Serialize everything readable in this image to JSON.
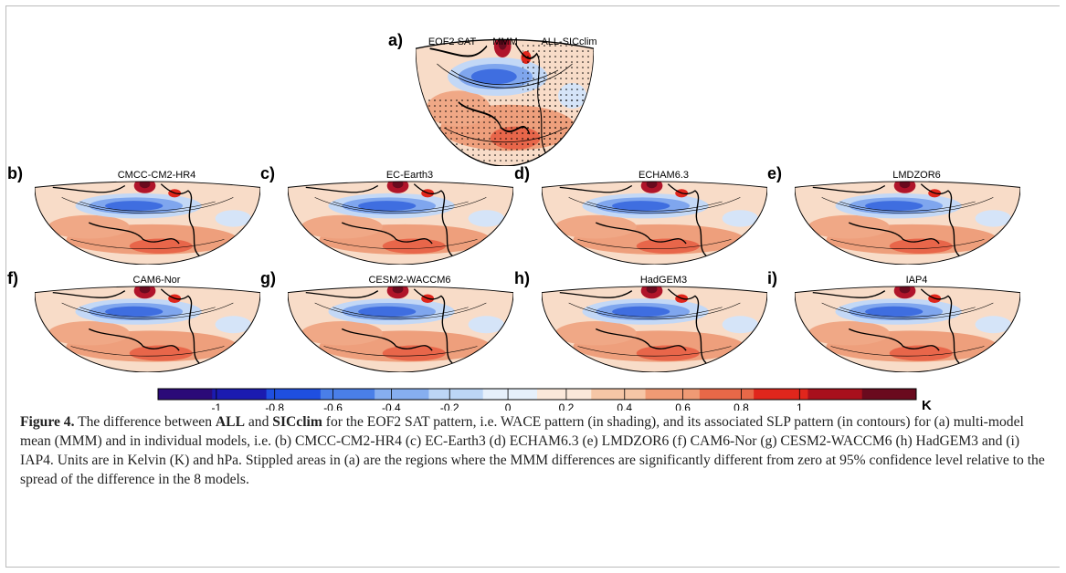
{
  "panels": [
    {
      "label": "a)",
      "titles": [
        "EOF2 SAT",
        "MMM",
        "ALL-SICclim"
      ]
    },
    {
      "label": "b)",
      "titles": [
        "CMCC-CM2-HR4"
      ]
    },
    {
      "label": "c)",
      "titles": [
        "EC-Earth3"
      ]
    },
    {
      "label": "d)",
      "titles": [
        "ECHAM6.3"
      ]
    },
    {
      "label": "e)",
      "titles": [
        "LMDZOR6"
      ]
    },
    {
      "label": "f)",
      "titles": [
        "CAM6-Nor"
      ]
    },
    {
      "label": "g)",
      "titles": [
        "CESM2-WACCM6"
      ]
    },
    {
      "label": "h)",
      "titles": [
        "HadGEM3"
      ]
    },
    {
      "label": "i)",
      "titles": [
        "IAP4"
      ]
    }
  ],
  "colorbar": {
    "lim": [
      -1.2,
      1.4
    ],
    "ticks": [
      -1,
      -0.8,
      -0.6,
      -0.4,
      -0.2,
      0,
      0.2,
      0.4,
      0.6,
      0.8,
      1
    ],
    "unit": "K",
    "colors": [
      "#2b0a78",
      "#1b1bb0",
      "#1f4fe0",
      "#4a7fe8",
      "#86aef0",
      "#bcd6f6",
      "#e6f0fb",
      "#fbe8da",
      "#f6c6a6",
      "#f09a74",
      "#e86848",
      "#e0261c",
      "#a8101c",
      "#6a0a1e"
    ]
  },
  "caption": {
    "label": "Figure 4.",
    "t1": " The difference between ",
    "b1": "ALL",
    "t2": " and ",
    "b2": "SICclim",
    "t3": " for the EOF2 SAT pattern, i.e. WACE pattern (in shading), and its associated SLP pattern (in contours) for (a) multi-model mean (MMM) and in individual models, i.e. (b) CMCC-CM2-HR4 (c) EC-Earth3 (d) ECHAM6.3 (e) LMDZOR6 (f) CAM6-Nor (g) CESM2-WACCM6 (h) HadGEM3 and (i) IAP4. Units are in Kelvin (K) and hPa. Stippled areas in (a) are the regions where the MMM differences are significantly different from zero at 95% confidence level relative to the spread of the difference in the 8 models."
  }
}
